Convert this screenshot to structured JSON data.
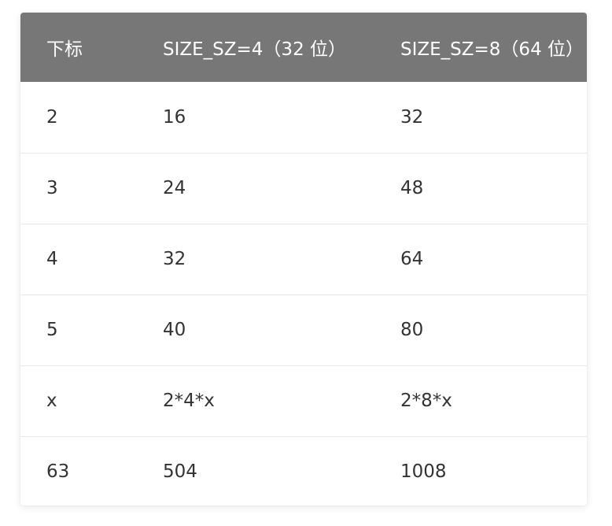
{
  "table": {
    "headers": [
      "下标",
      "SIZE_SZ=4（32 位）",
      "SIZE_SZ=8（64 位）"
    ],
    "rows": [
      [
        "2",
        "16",
        "32"
      ],
      [
        "3",
        "24",
        "48"
      ],
      [
        "4",
        "32",
        "64"
      ],
      [
        "5",
        "40",
        "80"
      ],
      [
        "x",
        "2*4*x",
        "2*8*x"
      ],
      [
        "63",
        "504",
        "1008"
      ]
    ]
  },
  "colors": {
    "header_background": "#777777",
    "header_text": "#ffffff",
    "body_text": "#333333",
    "row_divider": "#e6e6e6"
  }
}
